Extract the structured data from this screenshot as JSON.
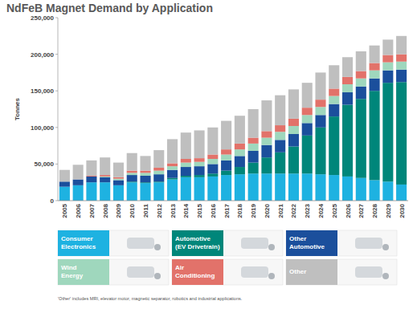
{
  "chart_data": {
    "type": "bar",
    "title": "NdFeB Magnet Demand by Application",
    "y_label": "Tonnes",
    "note": "'Other' includes MRI, elevator motor, magnetic separator, robotics and industrial applications.",
    "stacked": true,
    "grid": false,
    "legend": "bottom",
    "categories": [
      "2005",
      "2006",
      "2007",
      "2008",
      "2009",
      "2010",
      "2011",
      "2012",
      "2013",
      "2014",
      "2015",
      "2016",
      "2017",
      "2018",
      "2019",
      "2020",
      "2021",
      "2022",
      "2023",
      "2024",
      "2025",
      "2026",
      "2027",
      "2028",
      "2029",
      "2030"
    ],
    "ylim": [
      0,
      250000
    ],
    "yticks": [
      0,
      {
        "value": 50000,
        "label": "50,000"
      },
      {
        "value": 100000,
        "label": "100,000"
      },
      {
        "value": 150000,
        "label": "150,000"
      },
      {
        "value": 200000,
        "label": "200,000"
      },
      {
        "value": 250000,
        "label": "250,000"
      }
    ],
    "series": [
      {
        "name": "Consumer Electronics",
        "color": "#1eb2e1",
        "values": [
          19000,
          21000,
          25000,
          25000,
          21000,
          25000,
          24000,
          25000,
          29000,
          32000,
          32000,
          33000,
          35000,
          36000,
          37000,
          37000,
          37000,
          37000,
          37000,
          36000,
          35000,
          33000,
          31000,
          28000,
          26000,
          22000
        ]
      },
      {
        "name": "Automotive (EV Drivetrain)",
        "color": "#00867a",
        "values": [
          0,
          0,
          0,
          0,
          0,
          1000,
          1000,
          1000,
          2000,
          2000,
          3000,
          4000,
          6000,
          10000,
          15000,
          22000,
          29000,
          37000,
          52000,
          64000,
          80000,
          98000,
          108000,
          122000,
          135000,
          140000
        ]
      },
      {
        "name": "Other Automotive",
        "color": "#1b4f9c",
        "values": [
          7000,
          8000,
          8000,
          7000,
          7000,
          9000,
          9000,
          10000,
          11000,
          12000,
          12000,
          13000,
          14000,
          15000,
          16000,
          17000,
          17000,
          17000,
          17000,
          17000,
          17000,
          17000,
          17000,
          17000,
          17000,
          17000
        ]
      },
      {
        "name": "Wind Energy",
        "color": "#9fd7bd",
        "values": [
          0,
          0,
          0,
          1000,
          2000,
          3000,
          4000,
          5000,
          5000,
          6000,
          6000,
          7000,
          8000,
          9000,
          10000,
          10000,
          11000,
          11000,
          11000,
          11000,
          11000,
          11000,
          11000,
          11000,
          11000,
          11000
        ]
      },
      {
        "name": "Air Conditioning",
        "color": "#e2726a",
        "values": [
          0,
          0,
          1000,
          2000,
          2000,
          3000,
          3000,
          4000,
          4000,
          5000,
          5000,
          6000,
          7000,
          8000,
          8000,
          9000,
          9000,
          10000,
          10000,
          10000,
          10000,
          10000,
          10000,
          10000,
          10000,
          10000
        ]
      },
      {
        "name": "Other",
        "color": "#bfbfbf",
        "values": [
          16000,
          20000,
          21000,
          24000,
          20000,
          24000,
          20000,
          24000,
          33000,
          36000,
          38000,
          37000,
          39000,
          38000,
          39000,
          42000,
          41000,
          40000,
          34000,
          37000,
          32000,
          27000,
          27000,
          24000,
          21000,
          25000
        ]
      }
    ]
  }
}
